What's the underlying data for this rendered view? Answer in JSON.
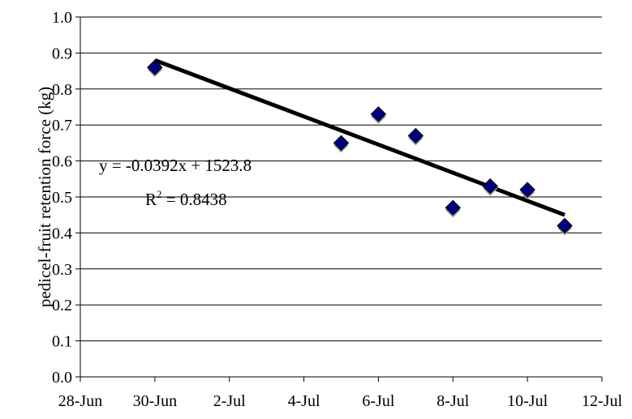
{
  "chart_data": {
    "type": "scatter",
    "title": "",
    "xlabel": "",
    "ylabel": "pedicel-fruit retention force (kg)",
    "x_tick_labels": [
      "28-Jun",
      "30-Jun",
      "2-Jul",
      "4-Jul",
      "6-Jul",
      "8-Jul",
      "10-Jul",
      "12-Jul"
    ],
    "x_tick_dates": [
      "2023-06-28",
      "2023-06-30",
      "2023-07-02",
      "2023-07-04",
      "2023-07-06",
      "2023-07-08",
      "2023-07-10",
      "2023-07-12"
    ],
    "xlim": [
      "2023-06-28",
      "2023-07-12"
    ],
    "ylim": [
      0,
      1.0
    ],
    "y_tick_labels": [
      "0.0",
      "0.1",
      "0.2",
      "0.3",
      "0.4",
      "0.5",
      "0.6",
      "0.7",
      "0.8",
      "0.9",
      "1.0"
    ],
    "grid": "horizontal",
    "series": [
      {
        "marker": "diamond",
        "color": "#000080",
        "points": [
          {
            "x": "2023-06-30",
            "y": 0.86
          },
          {
            "x": "2023-07-05",
            "y": 0.65
          },
          {
            "x": "2023-07-06",
            "y": 0.73
          },
          {
            "x": "2023-07-07",
            "y": 0.67
          },
          {
            "x": "2023-07-08",
            "y": 0.47
          },
          {
            "x": "2023-07-09",
            "y": 0.53
          },
          {
            "x": "2023-07-10",
            "y": 0.52
          },
          {
            "x": "2023-07-11",
            "y": 0.42
          }
        ]
      }
    ],
    "trendline": {
      "color": "#000000",
      "x_start": "2023-06-30",
      "y_start": 0.88,
      "x_end": "2023-07-11",
      "y_end": 0.45
    },
    "annotations": {
      "equation": "y = -0.0392x + 1523.8",
      "r2_prefix": "R",
      "r2_sup": "2",
      "r2_value": " = 0.8438"
    }
  }
}
